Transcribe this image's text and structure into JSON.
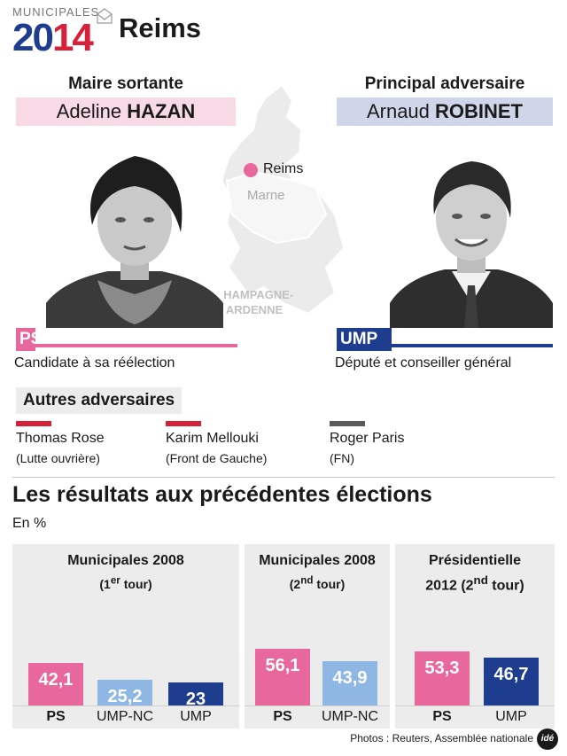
{
  "header": {
    "logo_word": "MUNICIPALES",
    "logo_year_a": "20",
    "logo_year_b": "14",
    "city": "Reims"
  },
  "incumbent": {
    "role": "Maire sortante",
    "first_name": "Adeline",
    "last_name": "HAZAN",
    "party": "PS",
    "caption": "Candidate à sa réélection",
    "color": "#e8679c",
    "namebox_color": "#f8d9e6"
  },
  "challenger": {
    "role": "Principal adversaire",
    "first_name": "Arnaud",
    "last_name": "ROBINET",
    "party": "UMP",
    "caption": "Député et conseiller général",
    "color": "#1f3d8f",
    "namebox_color": "#cfd6ea"
  },
  "map": {
    "city": "Reims",
    "department": "Marne",
    "region_line1": "CHAMPAGNE-",
    "region_line2": "ARDENNE"
  },
  "others": {
    "title": "Autres adversaires",
    "items": [
      {
        "name": "Thomas Rose",
        "party": "(Lutte ouvrière)",
        "color": "#d7203a"
      },
      {
        "name": "Karim Mellouki",
        "party": "(Front de Gauche)",
        "color": "#d7203a"
      },
      {
        "name": "Roger Paris",
        "party": "(FN)",
        "color": "#5a5a5a"
      }
    ]
  },
  "results": {
    "title": "Les résultats aux précédentes élections",
    "unit": "En %"
  },
  "chart_data": [
    {
      "type": "bar",
      "title": "Municipales 2008",
      "subtitle_pre": "(1",
      "subtitle_sup": "er",
      "subtitle_post": " tour)",
      "categories": [
        "PS",
        "UMP-NC",
        "UMP"
      ],
      "values": [
        42.1,
        25.2,
        23
      ],
      "labels": [
        "42,1",
        "25,2",
        "23"
      ],
      "colors": [
        "#e8679c",
        "#8fb7e3",
        "#1f3d8f"
      ],
      "bold": [
        true,
        false,
        false
      ]
    },
    {
      "type": "bar",
      "title": "Municipales 2008",
      "subtitle_pre": "(2",
      "subtitle_sup": "nd",
      "subtitle_post": " tour)",
      "categories": [
        "PS",
        "UMP-NC"
      ],
      "values": [
        56.1,
        43.9
      ],
      "labels": [
        "56,1",
        "43,9"
      ],
      "colors": [
        "#e8679c",
        "#8fb7e3"
      ],
      "bold": [
        true,
        false
      ]
    },
    {
      "type": "bar",
      "title": "Présidentielle",
      "subtitle_pre": "2012 (2",
      "subtitle_sup": "nd",
      "subtitle_post": " tour)",
      "categories": [
        "PS",
        "UMP"
      ],
      "values": [
        53.3,
        46.7
      ],
      "labels": [
        "53,3",
        "46,7"
      ],
      "colors": [
        "#e8679c",
        "#1f3d8f"
      ],
      "bold": [
        true,
        false
      ]
    }
  ],
  "footer": {
    "credit": "Photos : Reuters, Assemblée nationale",
    "agency": "idé"
  }
}
